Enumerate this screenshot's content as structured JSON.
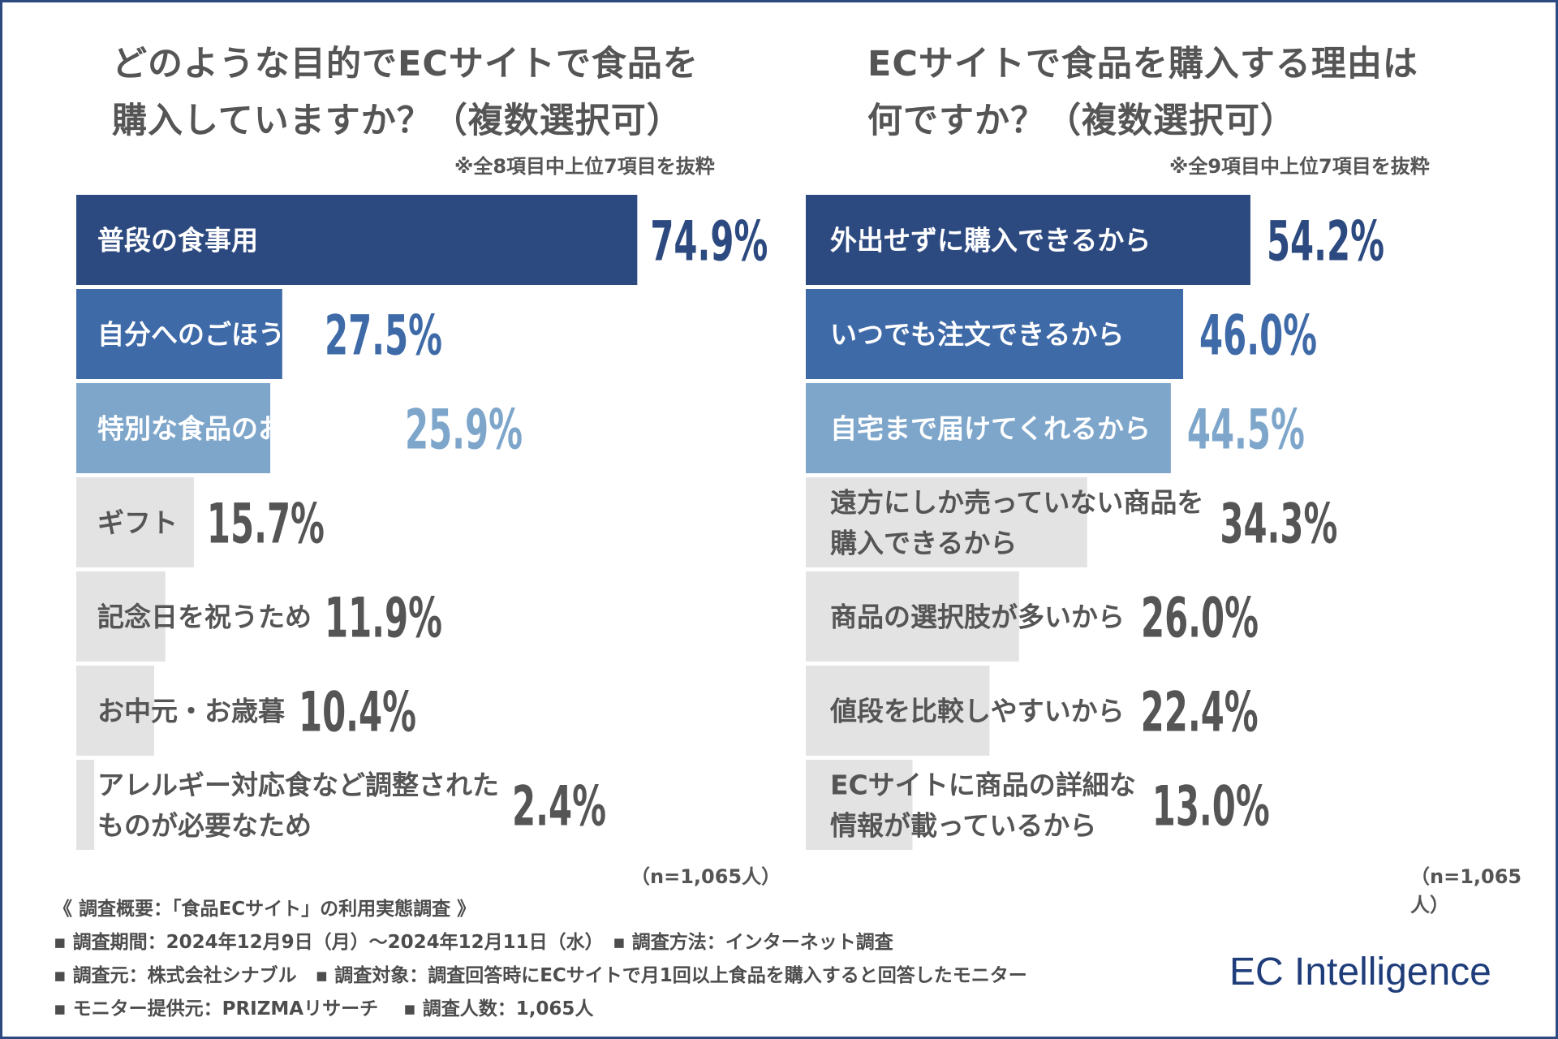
{
  "charts": [
    {
      "title_lines": [
        "どのような目的でECサイトで食品を",
        "購入していますか？（複数選択可）"
      ],
      "note": "※全8項目中上位7項目を抜粋",
      "sample": "（n=1,065人）"
    },
    {
      "title_lines": [
        "ECサイトで食品を購入する理由は",
        "何ですか？（複数選択可）"
      ],
      "note": "※全9項目中上位7項目を抜粋",
      "sample": "（n=1,065人）"
    }
  ],
  "chart_data": [
    {
      "type": "bar",
      "orientation": "horizontal",
      "categories": [
        [
          "普段の食事用"
        ],
        [
          "自分へのごほうび"
        ],
        [
          "特別な食品のお取り寄せ"
        ],
        [
          "ギフト"
        ],
        [
          "記念日を祝うため"
        ],
        [
          "お中元・お歳暮"
        ],
        [
          "アレルギー対応食など調整された",
          "ものが必要なため"
        ]
      ],
      "values": [
        74.9,
        27.5,
        25.9,
        15.7,
        11.9,
        10.4,
        2.4
      ],
      "value_labels": [
        "74.9%",
        "27.5%",
        "25.9%",
        "15.7%",
        "11.9%",
        "10.4%",
        "2.4%"
      ],
      "bar_colors": [
        "#2d4a80",
        "#3f6aa8",
        "#7ea6cb",
        "#e3e3e3",
        "#e3e3e3",
        "#e3e3e3",
        "#e3e3e3"
      ],
      "label_colors": [
        "#ffffff",
        "#ffffff",
        "#ffffff",
        "#555555",
        "#555555",
        "#555555",
        "#555555"
      ],
      "value_colors": [
        "#2d4a80",
        "#3f6aa8",
        "#7ea6cb",
        "#555555",
        "#555555",
        "#555555",
        "#555555"
      ]
    },
    {
      "type": "bar",
      "orientation": "horizontal",
      "categories": [
        [
          "外出せずに購入できるから"
        ],
        [
          "いつでも注文できるから"
        ],
        [
          "自宅まで届けてくれるから"
        ],
        [
          "遠方にしか売っていない商品を",
          "購入できるから"
        ],
        [
          "商品の選択肢が多いから"
        ],
        [
          "値段を比較しやすいから"
        ],
        [
          "ECサイトに商品の詳細な",
          "情報が載っているから"
        ]
      ],
      "values": [
        54.2,
        46.0,
        44.5,
        34.3,
        26.0,
        22.4,
        13.0
      ],
      "value_labels": [
        "54.2%",
        "46.0%",
        "44.5%",
        "34.3%",
        "26.0%",
        "22.4%",
        "13.0%"
      ],
      "bar_colors": [
        "#2d4a80",
        "#3f6aa8",
        "#7ea6cb",
        "#e3e3e3",
        "#e3e3e3",
        "#e3e3e3",
        "#e3e3e3"
      ],
      "label_colors": [
        "#ffffff",
        "#ffffff",
        "#ffffff",
        "#555555",
        "#555555",
        "#555555",
        "#555555"
      ],
      "value_colors": [
        "#2d4a80",
        "#3f6aa8",
        "#7ea6cb",
        "#555555",
        "#555555",
        "#555555",
        "#555555"
      ]
    }
  ],
  "footer": {
    "lines": [
      "《 調査概要：「食品ECサイト」の利用実態調査 》",
      "▪ 調査期間：2024年12月9日（月）～2024年12月11日（水）　▪ 調査方法：インターネット調査",
      "▪ 調査元：株式会社シナブル　▪ 調査対象：調査回答時にECサイトで月1回以上食品を購入すると回答したモニター",
      "▪ モニター提供元：PRIZMAリサーチ　 ▪ 調査人数：1,065人"
    ],
    "brand": "EC Intelligence",
    "brand_color": "#1f3d7a"
  }
}
